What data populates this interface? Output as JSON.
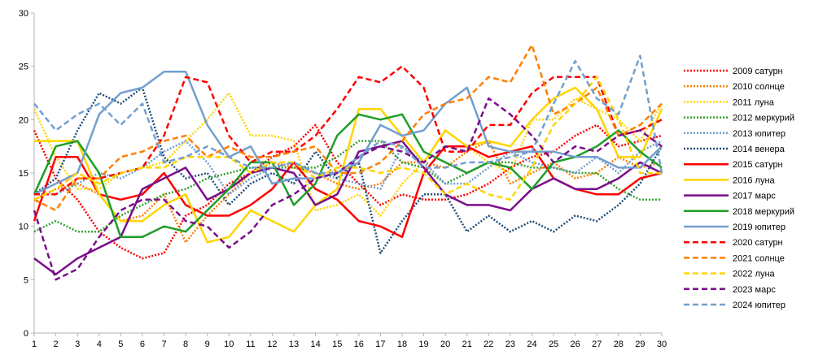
{
  "chart_data": {
    "type": "line",
    "title": "",
    "xlabel": "",
    "ylabel": "",
    "ylim": [
      0,
      30
    ],
    "yticks": [
      0,
      5,
      10,
      15,
      20,
      25,
      30
    ],
    "x": [
      1,
      2,
      3,
      4,
      5,
      6,
      7,
      8,
      9,
      10,
      11,
      12,
      13,
      14,
      15,
      16,
      17,
      18,
      19,
      20,
      21,
      22,
      23,
      24,
      25,
      26,
      27,
      28,
      29,
      30
    ],
    "grid": "off",
    "legend_position": "right",
    "series": [
      {
        "name": "2009 сатурн",
        "color": "#ff0000",
        "dash": "dot",
        "values": [
          19,
          14.5,
          12.5,
          9.5,
          8,
          7,
          7.5,
          11,
          12,
          14,
          15,
          16.5,
          17.5,
          19.5,
          16,
          14,
          12,
          13,
          12.5,
          12.5,
          13,
          14,
          15.5,
          16.5,
          17,
          18.5,
          19.5,
          17.5,
          18,
          18.5
        ]
      },
      {
        "name": "2010 солнце",
        "color": "#ff7f00",
        "dash": "dot",
        "values": [
          12.5,
          13.5,
          14,
          13,
          10.5,
          11,
          13,
          8.5,
          11,
          13,
          15,
          16,
          15.5,
          15,
          14,
          13.5,
          14,
          16,
          16,
          15.5,
          17,
          18,
          14,
          15,
          16,
          14.5,
          15,
          16.5,
          15.5,
          16
        ]
      },
      {
        "name": "2011 луна",
        "color": "#ffd500",
        "dash": "dot",
        "values": [
          21,
          16.5,
          13.5,
          13.5,
          15,
          15.5,
          16,
          18,
          20,
          22.5,
          18.5,
          18.5,
          18,
          11.5,
          12,
          13,
          11,
          14,
          16,
          19,
          17.5,
          16,
          15,
          20,
          20,
          22,
          21,
          20,
          18,
          21.5
        ]
      },
      {
        "name": "2012 меркурий",
        "color": "#33a02c",
        "dash": "dot",
        "values": [
          9.5,
          10.5,
          9.5,
          9.5,
          11,
          12,
          13,
          13.5,
          14.5,
          15,
          15.5,
          15.5,
          15.5,
          15.5,
          16.5,
          18,
          18,
          16,
          15.5,
          14,
          15,
          16,
          16,
          15.5,
          15.5,
          15,
          15,
          13.5,
          12.5,
          12.5
        ]
      },
      {
        "name": "2013 юпитер",
        "color": "#729fcf",
        "dash": "dot",
        "values": [
          13,
          13,
          14,
          15,
          14.5,
          15.5,
          17,
          18,
          16,
          13,
          14.5,
          15.5,
          16,
          15,
          14.5,
          14,
          13.5,
          17.5,
          16,
          14,
          14,
          15.5,
          17,
          16,
          15.5,
          15,
          16.5,
          15,
          17,
          18
        ]
      },
      {
        "name": "2014 венера",
        "color": "#1f4e79",
        "dash": "dot",
        "values": [
          13,
          14.5,
          19,
          22.5,
          21.5,
          23,
          16.5,
          14.5,
          15,
          12,
          14,
          15,
          14,
          17,
          14.5,
          16,
          7.5,
          10.5,
          13,
          13,
          9.5,
          11,
          9.5,
          10.5,
          9.5,
          11,
          10.5,
          12,
          14,
          17.5
        ]
      },
      {
        "name": "2015 сатурн",
        "color": "#ff0000",
        "dash": "solid",
        "values": [
          10.5,
          16.5,
          16.5,
          13,
          12.5,
          13,
          15,
          12,
          11,
          11,
          12,
          13.5,
          16,
          13.5,
          12.5,
          10.5,
          10,
          9,
          15,
          17.5,
          17.5,
          16.5,
          17,
          17.5,
          14.5,
          13.5,
          13,
          13,
          14.5,
          15
        ]
      },
      {
        "name": "2016 луна",
        "color": "#ffd500",
        "dash": "solid",
        "values": [
          18,
          18,
          18,
          13,
          10.5,
          10.5,
          12,
          13,
          8.5,
          9,
          11.5,
          10.5,
          9.5,
          12,
          13.5,
          21,
          21,
          18.5,
          16,
          19,
          17.5,
          18,
          17.5,
          20,
          22,
          23,
          21,
          16.5,
          16.5,
          21
        ]
      },
      {
        "name": "2017 марс",
        "color": "#7b0e8b",
        "dash": "solid",
        "values": [
          7,
          5.5,
          7,
          8,
          9,
          13.5,
          14.5,
          15.5,
          12.5,
          13.5,
          15,
          15.5,
          15,
          12,
          13,
          17,
          17.5,
          18,
          15.5,
          13,
          12,
          12,
          11.5,
          13.5,
          14.5,
          13.5,
          13.5,
          14.5,
          16,
          15
        ]
      },
      {
        "name": "2018 меркурий",
        "color": "#1e9e28",
        "dash": "solid",
        "values": [
          13,
          17.5,
          18,
          15,
          9,
          9,
          10,
          9.5,
          11.5,
          13.5,
          16,
          16,
          12,
          14,
          18.5,
          20.5,
          20,
          20.5,
          17,
          16,
          15,
          16,
          15.5,
          13.5,
          16,
          16.5,
          17.5,
          19,
          17,
          15.5
        ]
      },
      {
        "name": "2019 юпитер",
        "color": "#729fcf",
        "dash": "solid",
        "values": [
          13,
          14,
          15,
          20.5,
          22.5,
          23,
          24.5,
          24.5,
          19.5,
          16.5,
          17.5,
          14,
          14.5,
          14.5,
          15,
          16,
          19.5,
          18.5,
          19,
          21.5,
          23,
          17.5,
          17,
          17,
          17,
          16.5,
          16.5,
          15.5,
          15.5,
          17.5
        ]
      },
      {
        "name": "2020 сатурн",
        "color": "#ff0000",
        "dash": "dash",
        "values": [
          13,
          13,
          14.5,
          14.5,
          15,
          15.5,
          18.5,
          24,
          23.5,
          18.5,
          16,
          17,
          17,
          18.5,
          21,
          24,
          23.5,
          25,
          23,
          17,
          17,
          19.5,
          19.5,
          22.5,
          24,
          24,
          24,
          18.5,
          19,
          20
        ]
      },
      {
        "name": "2021 солнце",
        "color": "#ff7f00",
        "dash": "dash",
        "values": [
          12.5,
          11.5,
          14.5,
          14.5,
          16.5,
          17,
          18,
          18.5,
          16.5,
          17.5,
          16.5,
          16.5,
          17,
          17.5,
          15,
          15,
          16,
          18,
          20.5,
          21.5,
          22,
          24,
          23.5,
          27,
          20.5,
          21.5,
          23,
          18.5,
          19.5,
          21.5
        ]
      },
      {
        "name": "2022 луна",
        "color": "#ffd500",
        "dash": "dash",
        "values": [
          12.5,
          13.5,
          15,
          14,
          15,
          15.5,
          15.5,
          16.5,
          16.5,
          16.5,
          15,
          16,
          16,
          14.5,
          15.5,
          15.5,
          15,
          15.5,
          15,
          13,
          14,
          13,
          12.5,
          15.5,
          19.5,
          21.5,
          24,
          20,
          15,
          15
        ]
      },
      {
        "name": "2023 марс",
        "color": "#7b0e8b",
        "dash": "dash",
        "values": [
          11.5,
          5,
          6,
          9,
          11.5,
          12.5,
          12.5,
          10.5,
          10,
          8,
          9.5,
          12,
          13,
          14.5,
          15,
          16.5,
          17.5,
          17,
          16,
          17.5,
          17,
          22,
          20.5,
          18.5,
          16,
          17.5,
          17,
          18.5,
          19,
          17.5
        ]
      },
      {
        "name": "2024 юпитер",
        "color": "#729fcf",
        "dash": "dash",
        "values": [
          21.5,
          19,
          20.5,
          21.5,
          19.5,
          21.5,
          16,
          16.5,
          17.5,
          16.5,
          15.5,
          15.5,
          16,
          15,
          15,
          16.5,
          18,
          17.5,
          15.5,
          15.5,
          16,
          16,
          16.5,
          17,
          21.5,
          25.5,
          22,
          20.5,
          26,
          15
        ]
      }
    ]
  }
}
